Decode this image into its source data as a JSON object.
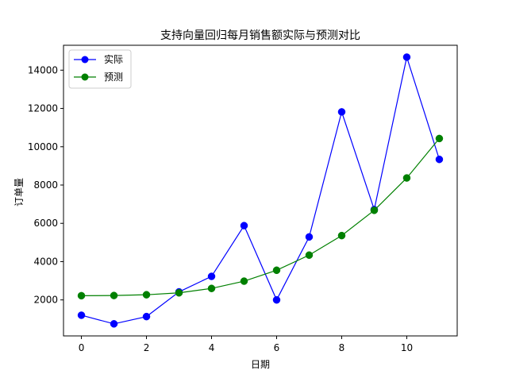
{
  "chart_data": {
    "type": "line",
    "title": "支持向量回归每月销售额实际与预测对比",
    "xlabel": "日期",
    "ylabel": "订单量",
    "x": [
      0,
      1,
      2,
      3,
      4,
      5,
      6,
      7,
      8,
      9,
      10,
      11
    ],
    "xlim": [
      -0.55,
      11.55
    ],
    "ylim": [
      120,
      15300
    ],
    "xticks": [
      0,
      2,
      4,
      6,
      8,
      10
    ],
    "xtick_labels": [
      "0",
      "2",
      "4",
      "6",
      "8",
      "10"
    ],
    "yticks": [
      2000,
      4000,
      6000,
      8000,
      10000,
      12000,
      14000
    ],
    "ytick_labels": [
      "2000",
      "4000",
      "6000",
      "8000",
      "10000",
      "12000",
      "14000"
    ],
    "grid": false,
    "legend": "top-left",
    "series": [
      {
        "name": "实际",
        "color": "#0000ff",
        "marker": "circle",
        "values": [
          1200,
          750,
          1130,
          2420,
          3230,
          5880,
          2000,
          5290,
          11820,
          6720,
          14680,
          9340
        ]
      },
      {
        "name": "预测",
        "color": "#008000",
        "marker": "circle",
        "values": [
          2220,
          2230,
          2270,
          2370,
          2600,
          2980,
          3550,
          4340,
          5360,
          6680,
          8370,
          10430
        ]
      }
    ]
  }
}
